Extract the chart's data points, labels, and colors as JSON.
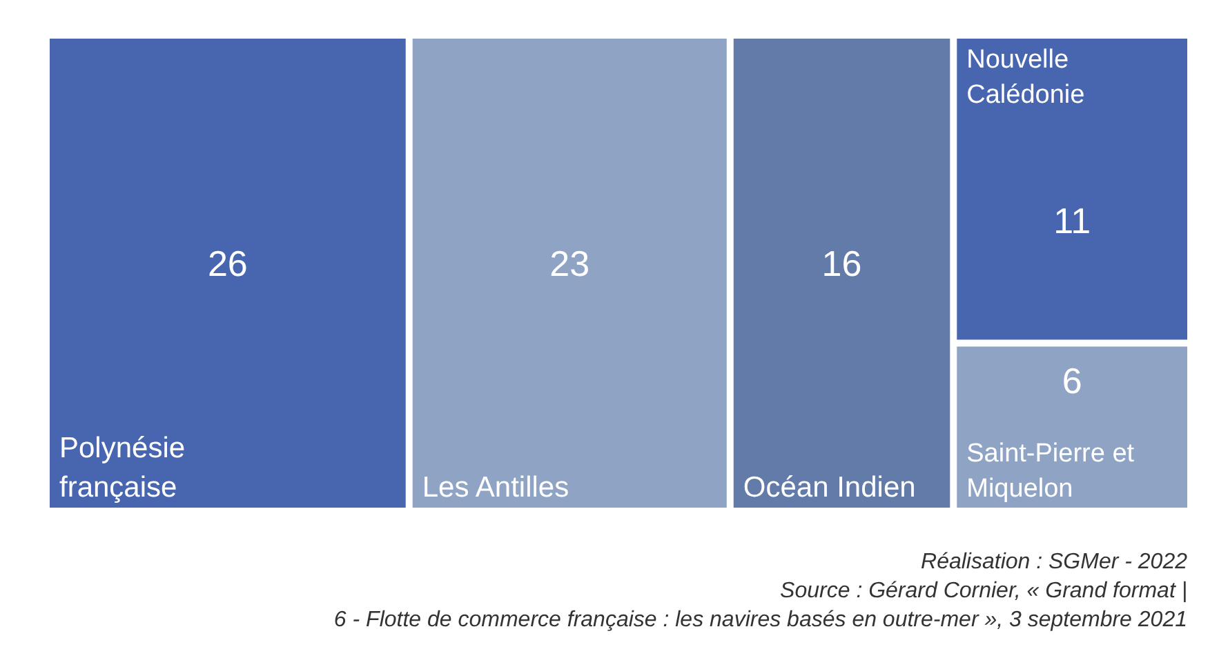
{
  "chart_data": {
    "type": "other",
    "categories": [
      "Polynésie française",
      "Les Antilles",
      "Océan Indien",
      "Nouvelle Calédonie",
      "Saint-Pierre et Miquelon"
    ],
    "values": [
      26,
      23,
      16,
      11,
      6
    ],
    "colors": [
      "#4866b0",
      "#8fa4c5",
      "#627ba9",
      "#4866b0",
      "#8fa4c5"
    ],
    "data_labels": true,
    "annotations": [
      "Réalisation : SGMer - 2022",
      "Source : Gérard Cornier, « Grand format |",
      "6 - Flotte de commerce française : les navires basés en outre-mer », 3 septembre 2021"
    ]
  }
}
